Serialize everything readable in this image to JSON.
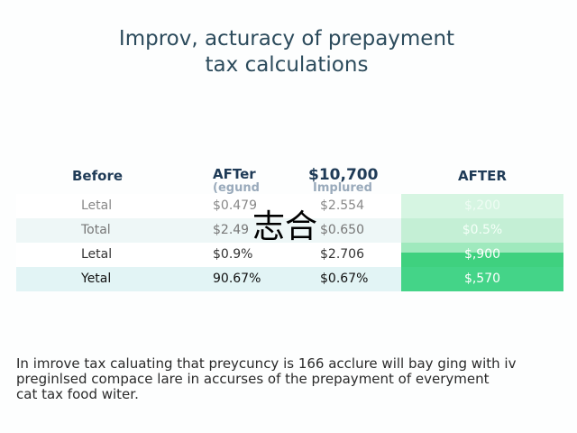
{
  "title": [
    "Improv, acturacy of prepayment",
    "tax calculations"
  ],
  "table": {
    "headers": [
      {
        "main": "Before"
      },
      {
        "main": "AFTer",
        "sub": "(egund"
      },
      {
        "main": "$10,700",
        "sub": "Implured"
      },
      {
        "main": "AFTER"
      }
    ],
    "rows": [
      [
        "Letal",
        "$0.479",
        "$2.554",
        "$,200"
      ],
      [
        "Total",
        "$2.49",
        "$0.650",
        "$0.5%"
      ],
      [
        "Letal",
        "$0.9%",
        "$2.706",
        "$,900"
      ],
      [
        "Yetal",
        "90.67%",
        "$0.67%",
        "$,570"
      ]
    ]
  },
  "overlay": "志合",
  "footer": [
    "In imrove tax caluating that preycuncy is 166 acclure will bay ging with iv",
    "preginlsed compace lare in accurses of the prepayment of everyment",
    "cat tax food witer."
  ]
}
